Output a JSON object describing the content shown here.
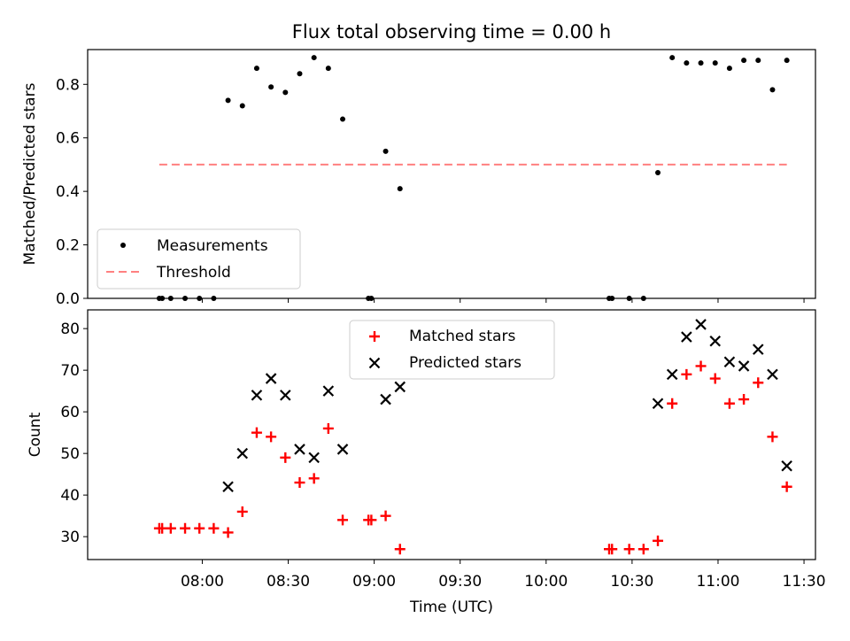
{
  "title": "Flux total observing time = 0.00 h",
  "chart_data": [
    {
      "type": "scatter",
      "ylabel": "Matched/Predicted stars",
      "ylim": [
        0,
        0.93
      ],
      "y_ticks": [
        0.0,
        0.2,
        0.4,
        0.6,
        0.8
      ],
      "y_tick_labels": [
        "0.0",
        "0.2",
        "0.4",
        "0.6",
        "0.8"
      ],
      "legend": {
        "placement": "lower-left",
        "entries": [
          {
            "label": "Measurements",
            "marker": "dot",
            "color": "#000000"
          },
          {
            "label": "Threshold",
            "marker": "dashed-line",
            "color": "#ff8080"
          }
        ]
      },
      "threshold": {
        "y": 0.5,
        "x_start": "07:45",
        "x_end": "11:24",
        "color": "#ff8080"
      },
      "series": [
        {
          "name": "Measurements",
          "color": "#000000",
          "x": [
            "07:45",
            "07:46",
            "07:49",
            "07:54",
            "07:59",
            "08:04",
            "08:09",
            "08:14",
            "08:19",
            "08:24",
            "08:29",
            "08:34",
            "08:39",
            "08:44",
            "08:49",
            "08:58",
            "08:59",
            "09:04",
            "09:09",
            "10:22",
            "10:23",
            "10:29",
            "10:34",
            "10:39",
            "10:44",
            "10:49",
            "10:54",
            "10:59",
            "11:04",
            "11:09",
            "11:14",
            "11:19",
            "11:24"
          ],
          "y": [
            0,
            0,
            0,
            0,
            0,
            0,
            0.74,
            0.72,
            0.86,
            0.79,
            0.77,
            0.84,
            0.9,
            0.86,
            0.67,
            0,
            0,
            0.55,
            0.41,
            0,
            0,
            0,
            0,
            0.47,
            0.9,
            0.88,
            0.88,
            0.88,
            0.86,
            0.89,
            0.89,
            0.78,
            0.89
          ]
        }
      ]
    },
    {
      "type": "scatter",
      "ylabel": "Count",
      "xlabel": "Time (UTC)",
      "ylim": [
        24.5,
        84.5
      ],
      "xlim": [
        "07:20",
        "11:34"
      ],
      "y_ticks": [
        30,
        40,
        50,
        60,
        70,
        80
      ],
      "y_tick_labels": [
        "30",
        "40",
        "50",
        "60",
        "70",
        "80"
      ],
      "x_ticks": [
        "08:00",
        "08:30",
        "09:00",
        "09:30",
        "10:00",
        "10:30",
        "11:00",
        "11:30"
      ],
      "legend": {
        "placement": "upper-center",
        "entries": [
          {
            "label": "Matched stars",
            "marker": "plus",
            "color": "#ff0000"
          },
          {
            "label": "Predicted stars",
            "marker": "x",
            "color": "#000000"
          }
        ]
      },
      "series": [
        {
          "name": "Matched stars",
          "color": "#ff0000",
          "x": [
            "07:45",
            "07:46",
            "07:49",
            "07:54",
            "07:59",
            "08:04",
            "08:09",
            "08:14",
            "08:19",
            "08:24",
            "08:29",
            "08:34",
            "08:39",
            "08:44",
            "08:49",
            "08:58",
            "08:59",
            "09:04",
            "09:09",
            "10:22",
            "10:23",
            "10:29",
            "10:34",
            "10:39",
            "10:44",
            "10:49",
            "10:54",
            "10:59",
            "11:04",
            "11:09",
            "11:14",
            "11:19",
            "11:24"
          ],
          "y": [
            32,
            32,
            32,
            32,
            32,
            32,
            31,
            36,
            55,
            54,
            49,
            43,
            44,
            56,
            34,
            34,
            34,
            35,
            27,
            27,
            27,
            27,
            27,
            29,
            62,
            69,
            71,
            68,
            62,
            63,
            67,
            54,
            42
          ]
        },
        {
          "name": "Predicted stars",
          "color": "#000000",
          "x": [
            "08:09",
            "08:14",
            "08:19",
            "08:24",
            "08:29",
            "08:34",
            "08:39",
            "08:44",
            "08:49",
            "09:04",
            "09:09",
            "10:39",
            "10:44",
            "10:49",
            "10:54",
            "10:59",
            "11:04",
            "11:09",
            "11:14",
            "11:19",
            "11:24"
          ],
          "y": [
            42,
            50,
            64,
            68,
            64,
            51,
            49,
            65,
            51,
            63,
            66,
            62,
            69,
            78,
            81,
            77,
            72,
            71,
            75,
            69,
            47
          ]
        }
      ]
    }
  ]
}
